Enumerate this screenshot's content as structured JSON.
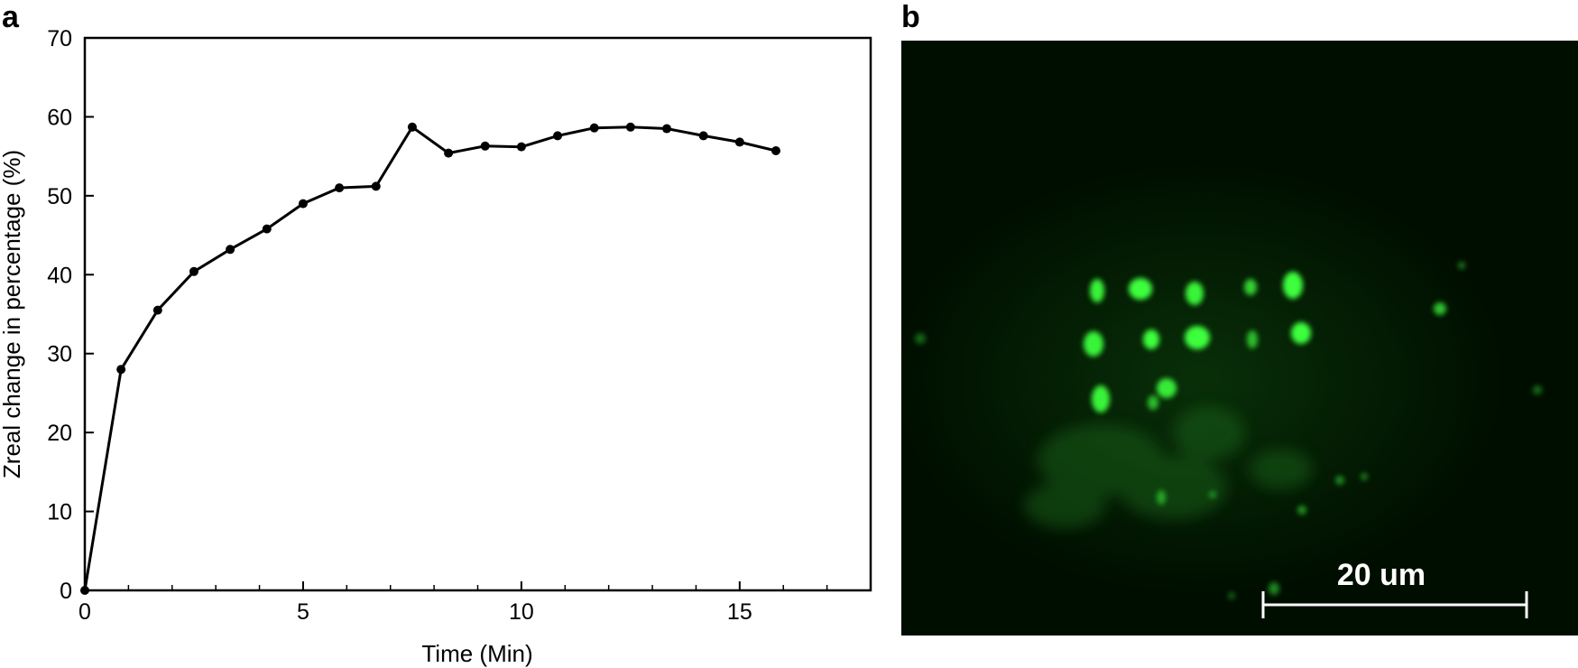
{
  "panels": {
    "a": {
      "label": "a"
    },
    "b": {
      "label": "b",
      "scale_bar_text": "20 um"
    }
  },
  "chart_data": {
    "type": "line",
    "title": "",
    "xlabel": "Time (Min)",
    "ylabel": "Zreal change in percentage (%)",
    "xlim": [
      0,
      18
    ],
    "ylim": [
      0,
      70
    ],
    "xticks": [
      0,
      5,
      10,
      15
    ],
    "xtick_labels": [
      "0",
      "5",
      "10",
      "15"
    ],
    "xminor_ticks": [
      1,
      2,
      3,
      4,
      6,
      7,
      8,
      9,
      11,
      12,
      13,
      14,
      16,
      17
    ],
    "yticks": [
      0,
      10,
      20,
      30,
      40,
      50,
      60,
      70
    ],
    "ytick_labels": [
      "0",
      "10",
      "20",
      "30",
      "40",
      "50",
      "60",
      "70"
    ],
    "grid": false,
    "series": [
      {
        "x": [
          0,
          0.83,
          1.67,
          2.5,
          3.33,
          4.17,
          5.0,
          5.83,
          6.67,
          7.5,
          8.33,
          9.17,
          10.0,
          10.83,
          11.67,
          12.5,
          13.33,
          14.17,
          15.0,
          15.83
        ],
        "y": [
          0,
          28.0,
          35.5,
          40.4,
          43.2,
          45.8,
          49.0,
          51.0,
          51.2,
          58.7,
          55.4,
          56.3,
          56.2,
          57.6,
          58.6,
          58.7,
          58.5,
          57.6,
          56.8,
          55.7
        ]
      }
    ]
  },
  "micrograph": {
    "background": "#000e00",
    "spot_color": "#3dff3d"
  }
}
